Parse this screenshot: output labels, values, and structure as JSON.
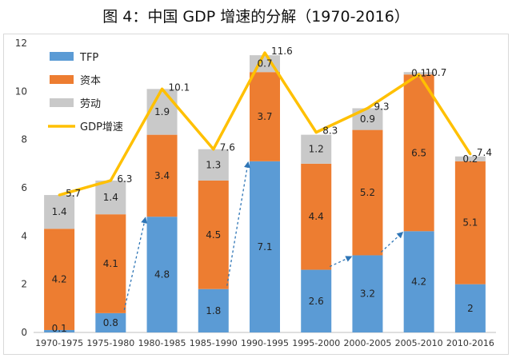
{
  "title": "图 4：中国 GDP 增速的分解（1970-2016）",
  "chart_data": {
    "type": "bar",
    "stacked": true,
    "categories": [
      "1970-1975",
      "1975-1980",
      "1980-1985",
      "1985-1990",
      "1990-1995",
      "1995-2000",
      "2000-2005",
      "2005-2010",
      "2010-2016"
    ],
    "series": [
      {
        "name": "TFP",
        "color": "#5b9bd5",
        "values": [
          0.1,
          0.8,
          4.8,
          1.8,
          7.1,
          2.6,
          3.2,
          4.2,
          2
        ]
      },
      {
        "name": "资本",
        "color": "#ed7d31",
        "values": [
          4.2,
          4.1,
          3.4,
          4.5,
          3.7,
          4.4,
          5.2,
          6.5,
          5.1
        ]
      },
      {
        "name": "劳动",
        "color": "#c9c9c9",
        "values": [
          1.4,
          1.4,
          1.9,
          1.3,
          0.7,
          1.2,
          0.9,
          0.1,
          0.2
        ]
      }
    ],
    "line": {
      "name": "GDP增速",
      "color": "#ffc000",
      "type": "line",
      "values": [
        5.7,
        6.3,
        10.1,
        7.6,
        11.6,
        8.3,
        9.3,
        10.7,
        7.4
      ]
    },
    "yticks": [
      "0",
      "2",
      "4",
      "6",
      "8",
      "10",
      "12"
    ],
    "ylim": [
      0,
      12
    ],
    "grid": false,
    "legend": "top-left",
    "annotations": "dashed blue arrows linking TFP rises between adjacent periods"
  }
}
